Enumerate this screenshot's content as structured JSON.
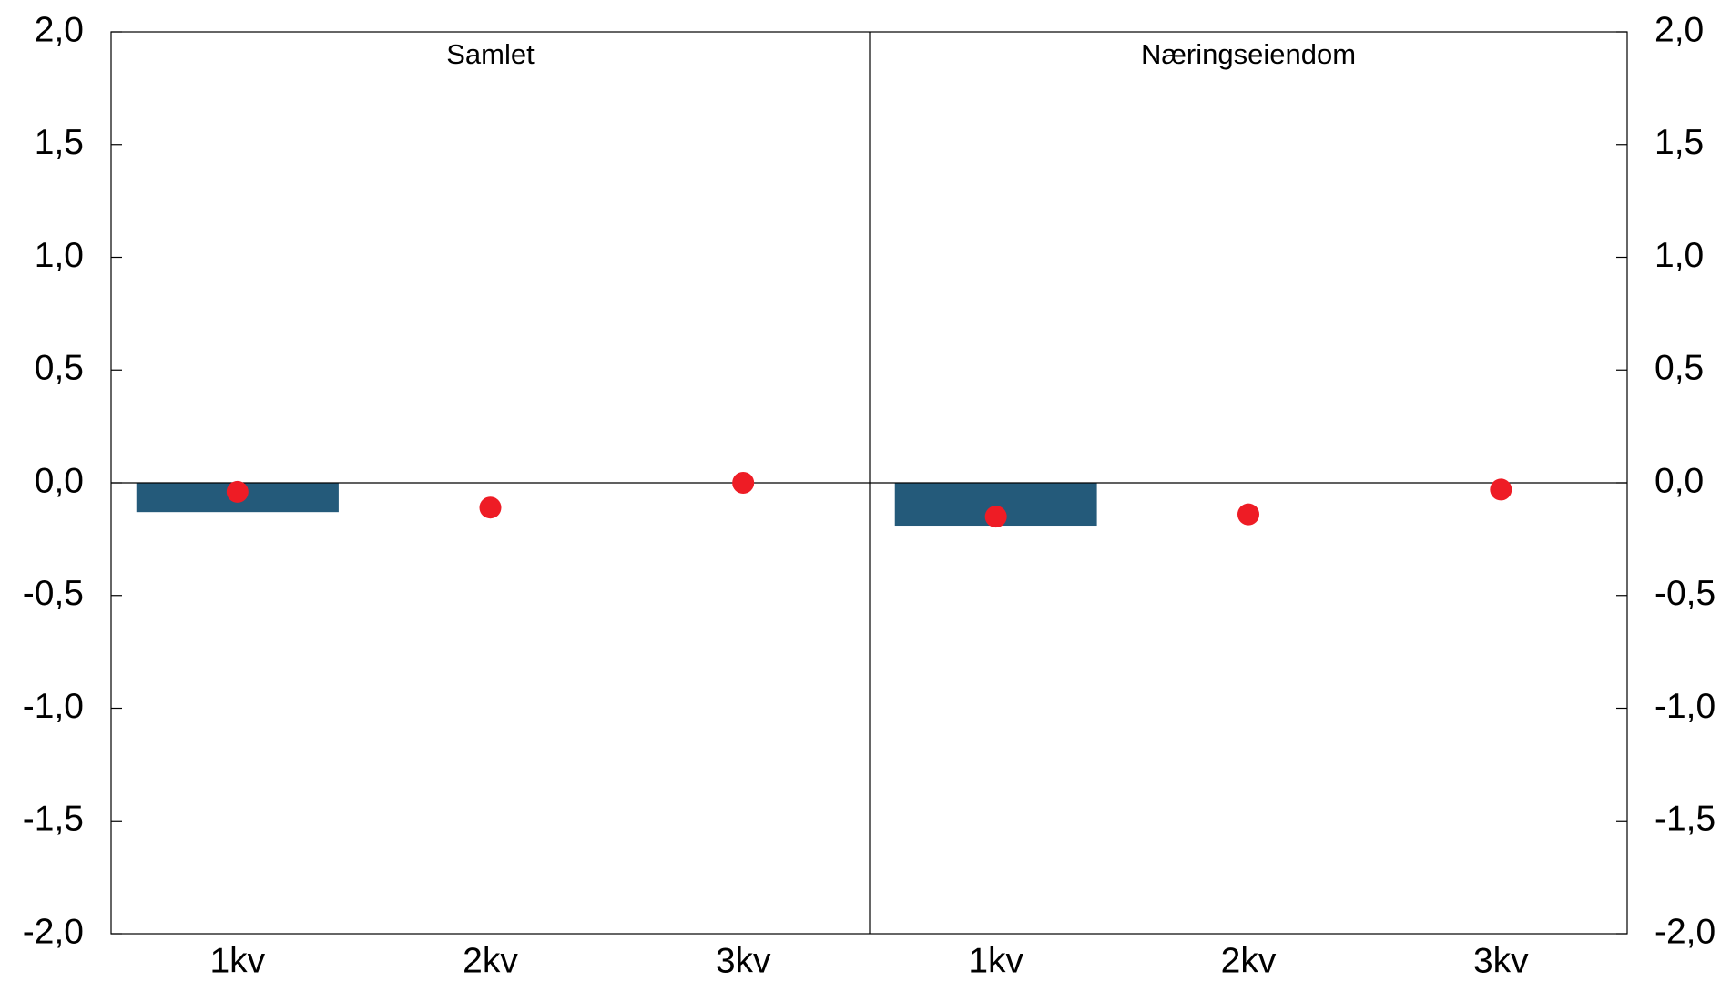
{
  "chart_data": [
    {
      "type": "bar",
      "title": "Samlet",
      "categories": [
        "1kv",
        "2kv",
        "3kv"
      ],
      "series": [
        {
          "type": "bar",
          "color": "#245a7a",
          "values": [
            -0.13,
            null,
            null
          ]
        },
        {
          "type": "scatter",
          "color": "#ee1c25",
          "values": [
            -0.04,
            -0.11,
            0.0
          ]
        }
      ],
      "ylim": [
        -2,
        2
      ],
      "yticks": [
        {
          "value": -2,
          "label": "-2,0"
        },
        {
          "value": -1.5,
          "label": "-1,5"
        },
        {
          "value": -1,
          "label": "-1,0"
        },
        {
          "value": -0.5,
          "label": "-0,5"
        },
        {
          "value": 0,
          "label": "0,0"
        },
        {
          "value": 0.5,
          "label": "0,5"
        },
        {
          "value": 1,
          "label": "1,0"
        },
        {
          "value": 1.5,
          "label": "1,5"
        },
        {
          "value": 2,
          "label": "2,0"
        }
      ]
    },
    {
      "type": "bar",
      "title": "Næringseiendom",
      "categories": [
        "1kv",
        "2kv",
        "3kv"
      ],
      "series": [
        {
          "type": "bar",
          "color": "#245a7a",
          "values": [
            -0.19,
            null,
            null
          ]
        },
        {
          "type": "scatter",
          "color": "#ee1c25",
          "values": [
            -0.15,
            -0.14,
            -0.03
          ]
        }
      ],
      "ylim": [
        -2,
        2
      ],
      "yticks": [
        {
          "value": -2,
          "label": "-2,0"
        },
        {
          "value": -1.5,
          "label": "-1,5"
        },
        {
          "value": -1,
          "label": "-1,0"
        },
        {
          "value": -0.5,
          "label": "-0,5"
        },
        {
          "value": 0,
          "label": "0,0"
        },
        {
          "value": 0.5,
          "label": "0,5"
        },
        {
          "value": 1,
          "label": "1,0"
        },
        {
          "value": 1.5,
          "label": "1,5"
        },
        {
          "value": 2,
          "label": "2,0"
        }
      ]
    }
  ]
}
